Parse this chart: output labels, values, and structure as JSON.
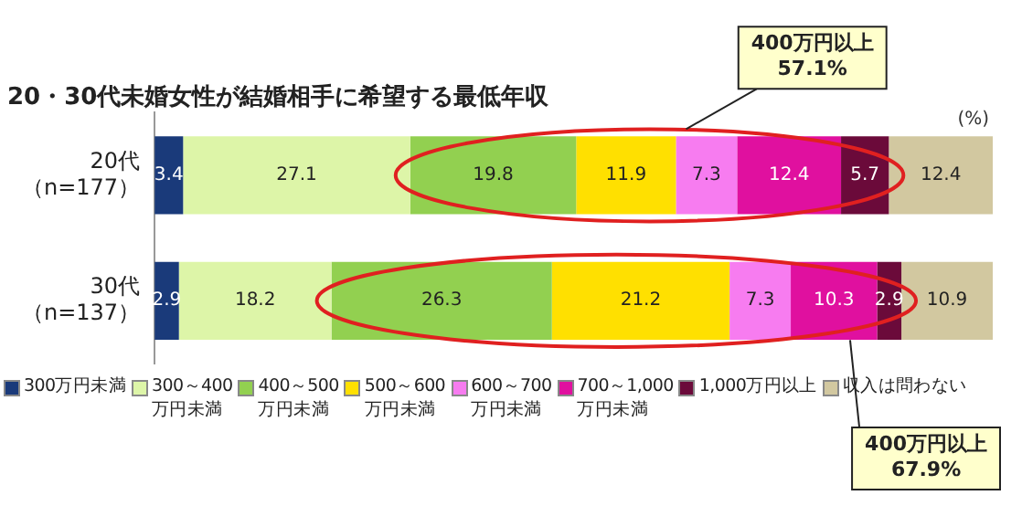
{
  "chart_data": {
    "type": "bar",
    "orientation": "horizontal",
    "stacked": true,
    "title": "20・30代未婚女性が結婚相手に希望する最低年収",
    "categories": [
      "20代（n=177）",
      "30代（n=137）"
    ],
    "series": [
      {
        "name": "300万円未満",
        "color": "#1a3a7a",
        "values": [
          3.4,
          2.9
        ]
      },
      {
        "name": "300～400万円未満",
        "color": "#ddf5a8",
        "values": [
          27.1,
          18.2
        ]
      },
      {
        "name": "400～500万円未満",
        "color": "#92d050",
        "values": [
          19.8,
          26.3
        ]
      },
      {
        "name": "500～600万円未満",
        "color": "#ffe000",
        "values": [
          11.9,
          21.2
        ]
      },
      {
        "name": "600～700万円未満",
        "color": "#f77cf0",
        "values": [
          7.3,
          7.3
        ]
      },
      {
        "name": "700～1,000万円未満",
        "color": "#e0109f",
        "values": [
          12.4,
          10.3
        ]
      },
      {
        "name": "1,000万円以上",
        "color": "#6b0a3a",
        "values": [
          5.7,
          2.9
        ]
      },
      {
        "name": "収入は問わない",
        "color": "#d2c8a0",
        "values": [
          12.4,
          10.9
        ]
      }
    ],
    "xlim": [
      0,
      100
    ],
    "tick_labels": "y",
    "data_labels": true,
    "legend": "bottom",
    "annotations": [
      "(%)",
      "400万円以上\n57.1%",
      "400万円以上\n67.9%"
    ]
  }
}
